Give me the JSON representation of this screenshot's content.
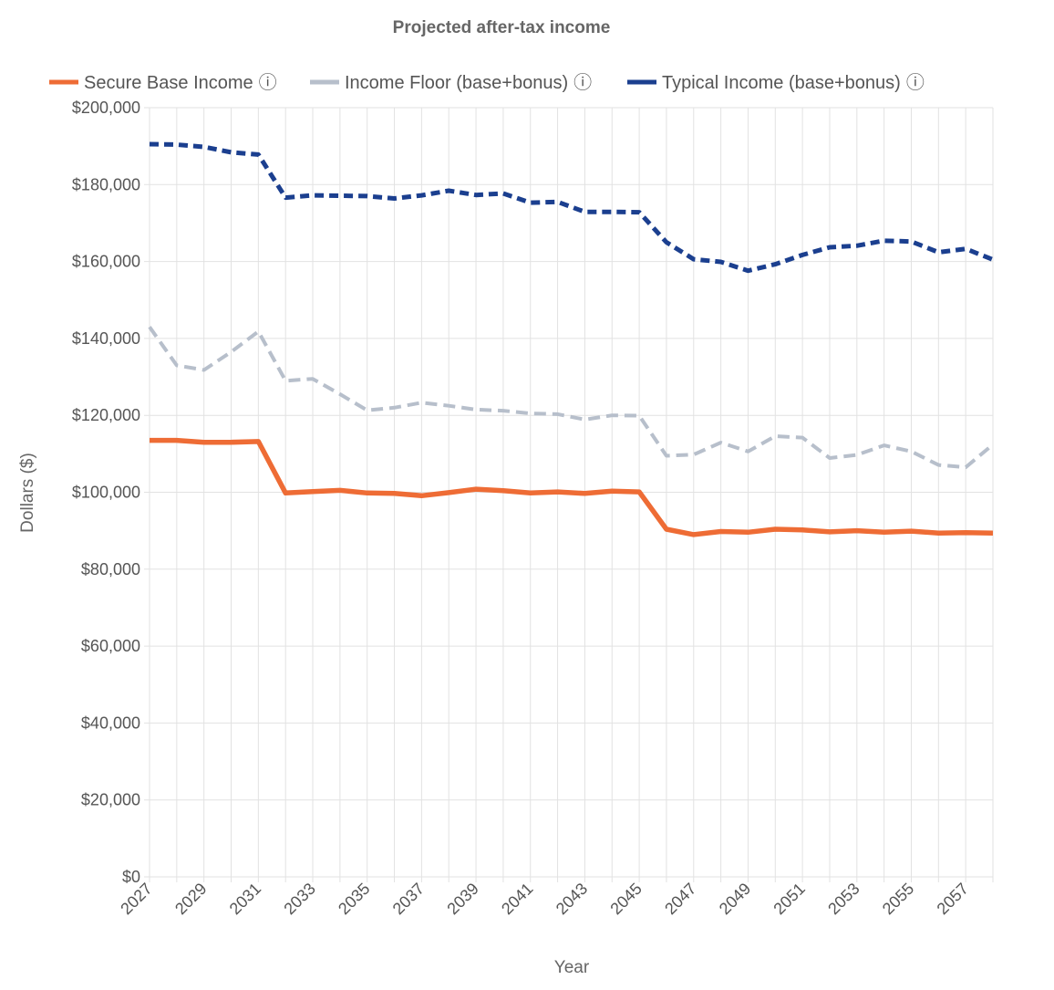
{
  "chart_data": {
    "type": "line",
    "title": "Projected after-tax income",
    "xlabel": "Year",
    "ylabel": "Dollars ($)",
    "ylim": [
      0,
      200000
    ],
    "yticks": [
      0,
      20000,
      40000,
      60000,
      80000,
      100000,
      120000,
      140000,
      160000,
      180000,
      200000
    ],
    "ytick_labels": [
      "$0",
      "$20,000",
      "$40,000",
      "$60,000",
      "$80,000",
      "$100,000",
      "$120,000",
      "$140,000",
      "$160,000",
      "$180,000",
      "$200,000"
    ],
    "x": [
      2027,
      2028,
      2029,
      2030,
      2031,
      2032,
      2033,
      2034,
      2035,
      2036,
      2037,
      2038,
      2039,
      2040,
      2041,
      2042,
      2043,
      2044,
      2045,
      2046,
      2047,
      2048,
      2049,
      2050,
      2051,
      2052,
      2053,
      2054,
      2055,
      2056,
      2057,
      2058
    ],
    "xtick_labels": [
      "2027",
      "2029",
      "2031",
      "2033",
      "2035",
      "2037",
      "2039",
      "2041",
      "2043",
      "2045",
      "2047",
      "2049",
      "2051",
      "2053",
      "2055",
      "2057"
    ],
    "xtick_values": [
      2027,
      2029,
      2031,
      2033,
      2035,
      2037,
      2039,
      2041,
      2043,
      2045,
      2047,
      2049,
      2051,
      2053,
      2055,
      2057
    ],
    "grid": true,
    "legend_position": "top-left",
    "info_glyph": "ⓘ",
    "series": [
      {
        "name": "Secure Base Income",
        "color": "#ee6c35",
        "style": "solid",
        "values": [
          113500,
          113500,
          113000,
          113000,
          113200,
          99800,
          100200,
          100500,
          99800,
          99700,
          99100,
          99900,
          100800,
          100400,
          99800,
          100100,
          99700,
          100300,
          100100,
          90400,
          89000,
          89800,
          89600,
          90400,
          90200,
          89700,
          90000,
          89600,
          89900,
          89400,
          89500,
          89400
        ]
      },
      {
        "name": "Income Floor (base+bonus)",
        "color": "#b7bfcb",
        "style": "dashed",
        "values": [
          143000,
          133000,
          131800,
          136500,
          141800,
          129000,
          129500,
          125500,
          121300,
          122000,
          123300,
          122500,
          121500,
          121200,
          120500,
          120300,
          118900,
          120000,
          119900,
          109500,
          109800,
          112900,
          110600,
          114600,
          114200,
          108900,
          109700,
          112200,
          110600,
          107100,
          106500,
          112400
        ]
      },
      {
        "name": "Typical Income (base+bonus)",
        "color": "#1b3f8f",
        "style": "dashed",
        "values": [
          190500,
          190400,
          189800,
          188400,
          187800,
          176600,
          177200,
          177100,
          177000,
          176400,
          177200,
          178400,
          177300,
          177700,
          175300,
          175500,
          172900,
          172900,
          172800,
          165000,
          160600,
          159900,
          157600,
          159300,
          161700,
          163700,
          164100,
          165400,
          165200,
          162400,
          163300,
          160500
        ]
      }
    ]
  }
}
